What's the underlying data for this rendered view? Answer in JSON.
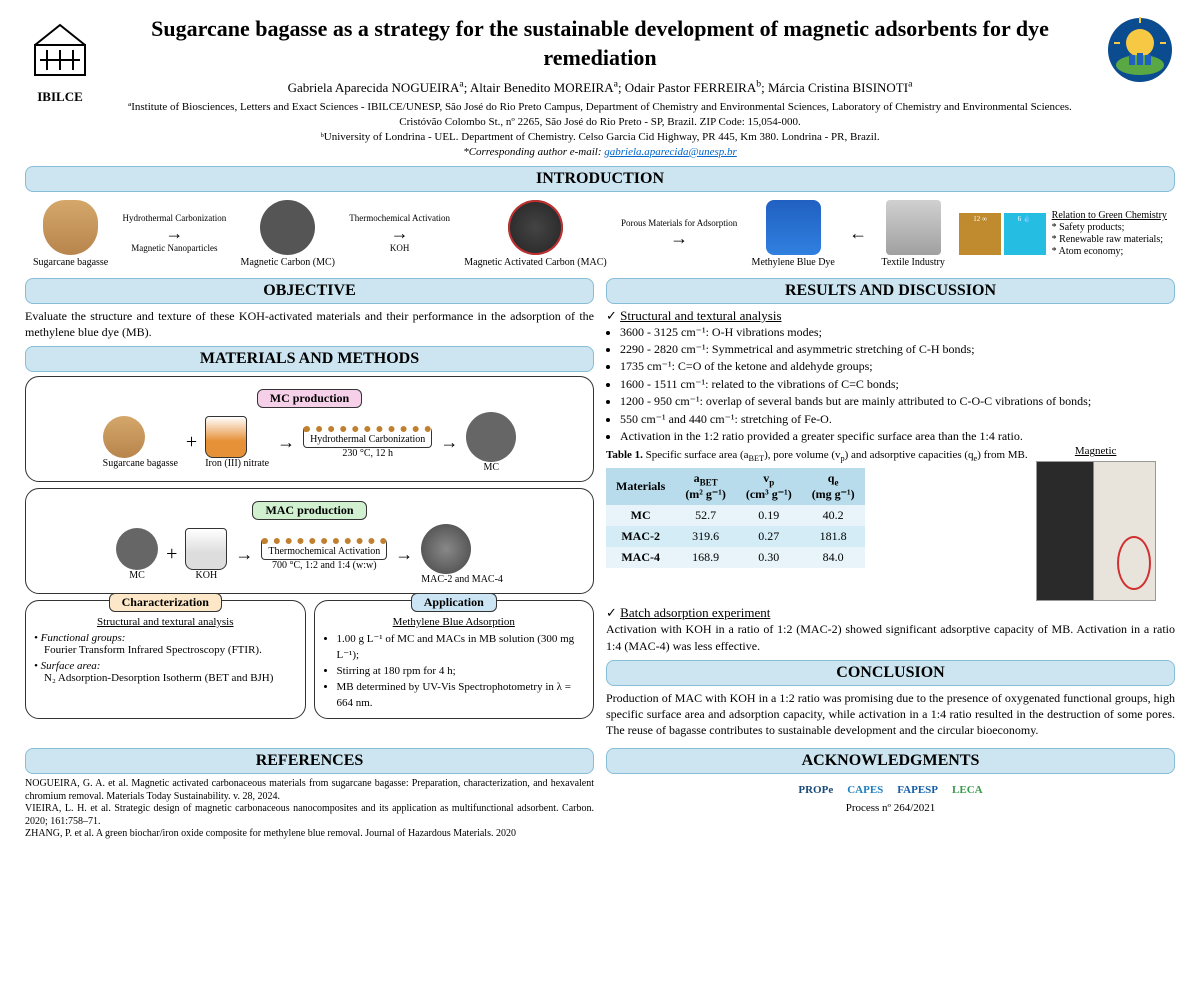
{
  "title": "Sugarcane bagasse as a strategy for the sustainable development of magnetic adsorbents for dye remediation",
  "authors_html": "Gabriela Aparecida NOGUEIRA<sup>a</sup>; Altair Benedito MOREIRA<sup>a</sup>; Odair Pastor FERREIRA<sup>b</sup>; Márcia Cristina BISINOTI<sup>a</sup>",
  "affil_a": "ªInstitute of Biosciences, Letters and Exact Sciences - IBILCE/UNESP, São José do Rio Preto Campus, Department of Chemistry and Environmental Sciences, Laboratory of Chemistry and Environmental Sciences. Cristóvão Colombo St., nº 2265, São José do Rio Preto - SP, Brazil. ZIP Code: 15,054-000.",
  "affil_b": "ᵇUniversity of Londrina - UEL. Department of Chemistry. Celso Garcia Cid Highway, PR 445, Km 380. Londrina - PR, Brazil.",
  "corresponding": "*Corresponding author e-mail:",
  "email": "gabriela.aparecida@unesp.br",
  "logos": {
    "left": "IBILCE"
  },
  "sections": {
    "intro": "INTRODUCTION",
    "objective": "OBJECTIVE",
    "materials": "MATERIALS AND METHODS",
    "results": "RESULTS AND DISCUSSION",
    "conclusion": "CONCLUSION",
    "references": "REFERENCES",
    "ack": "ACKNOWLEDGMENTS"
  },
  "intro_flow": {
    "bagasse": "Sugarcane bagasse",
    "step1a": "Hydrothermal Carbonization",
    "step1b": "Magnetic Nanoparticles",
    "mc": "Magnetic Carbon (MC)",
    "step2a": "Thermochemical Activation",
    "step2b": "KOH",
    "mac": "Magnetic Activated Carbon (MAC)",
    "porous": "Porous Materials for Adsorption",
    "mb": "Methylene Blue Dye",
    "textile": "Textile Industry",
    "green_title": "Relation to Green Chemistry",
    "green1": "* Safety products;",
    "green2": "* Renewable raw materials;",
    "green3": "* Atom economy;"
  },
  "objective_text": "Evaluate the structure and texture of these KOH-activated materials and their performance in the adsorption of the methylene blue dye (MB).",
  "methods": {
    "mc_prod": "MC production",
    "mac_prod": "MAC production",
    "char": "Characterization",
    "app": "Application",
    "bagasse": "Sugarcane bagasse",
    "iron": "Iron (III) nitrate",
    "htc": "Hydrothermal Carbonization",
    "htc_cond": "230 °C, 12 h",
    "mc": "MC",
    "koh": "KOH",
    "tca": "Thermochemical Activation",
    "tca_cond": "700 °C, 1:2 and 1:4 (w:w)",
    "macs": "MAC-2 and MAC-4",
    "char_title": "Structural and textural analysis",
    "char_fg": "Functional groups:",
    "char_ftir": "Fourier Transform Infrared Spectroscopy (FTIR).",
    "char_sa": "Surface area:",
    "char_bet": "N₂ Adsorption-Desorption Isotherm (BET and BJH)",
    "app_title": "Methylene Blue Adsorption",
    "app1": "1.00 g L⁻¹ of MC and MACs in MB solution (300 mg L⁻¹);",
    "app2": "Stirring at 180 rpm for 4 h;",
    "app3": "MB determined by UV-Vis Spectrophotometry in λ = 664 nm."
  },
  "results": {
    "sta": "Structural and textural analysis",
    "r1": "3600 - 3125 cm⁻¹: O-H vibrations modes;",
    "r2": "2290 - 2820 cm⁻¹: Symmetrical and asymmetric stretching of C-H bonds;",
    "r3": "1735 cm⁻¹: C=O of the ketone and aldehyde groups;",
    "r4": "1600 - 1511 cm⁻¹: related to the vibrations of C=C bonds;",
    "r5": "1200 - 950 cm⁻¹: overlap of several bands but are mainly attributed to C-O-C vibrations of bonds;",
    "r6": "550 cm⁻¹ and 440 cm⁻¹: stretching of Fe-O.",
    "r7": "Activation in the 1:2 ratio provided a greater specific surface area than the 1:4 ratio.",
    "magnetic": "Magnetic",
    "table_caption": "Table 1. Specific surface area (aBET), pore volume (vp) and adsorptive capacities (qe) from MB.",
    "table": {
      "headers": [
        "Materials",
        "aBET (m² g⁻¹)",
        "vp (cm³ g⁻¹)",
        "qe (mg g⁻¹)"
      ],
      "rows": [
        [
          "MC",
          "52.7",
          "0.19",
          "40.2"
        ],
        [
          "MAC-2",
          "319.6",
          "0.27",
          "181.8"
        ],
        [
          "MAC-4",
          "168.9",
          "0.30",
          "84.0"
        ]
      ]
    },
    "batch": "Batch adsorption experiment",
    "batch_text": "Activation with KOH in a ratio of 1:2 (MAC-2) showed significant adsorptive capacity of MB. Activation in a ratio 1:4 (MAC-4) was less effective."
  },
  "conclusion_text": "Production of MAC with KOH in a 1:2 ratio was promising due to the presence of oxygenated functional groups, high specific surface area and adsorption capacity, while activation in a 1:4 ratio resulted in the destruction of some pores. The reuse of bagasse contributes to sustainable development and the circular bioeconomy.",
  "references": {
    "ref1": "NOGUEIRA, G. A. et al. Magnetic activated carbonaceous materials from sugarcane bagasse: Preparation, characterization, and hexavalent chromium removal. Materials Today Sustainability. v. 28, 2024.",
    "ref2": "VIEIRA, L. H. et al. Strategic design of magnetic carbonaceous nanocomposites and its application as multifunctional adsorbent. Carbon. 2020; 161:758–71.",
    "ref3": "ZHANG, P. et al. A green biochar/iron oxide composite for methylene blue removal. Journal of Hazardous Materials. 2020"
  },
  "ack": {
    "process": "Process nº 264/2021",
    "logos": [
      "PROPe",
      "CAPES",
      "FAPESP",
      "LECA"
    ]
  },
  "colors": {
    "header_bg": "#cce5f0",
    "header_border": "#88bdd8",
    "table_th_bg": "#b8dceb",
    "table_row_a": "#e8f4fa",
    "table_row_b": "#d4ecf5"
  }
}
